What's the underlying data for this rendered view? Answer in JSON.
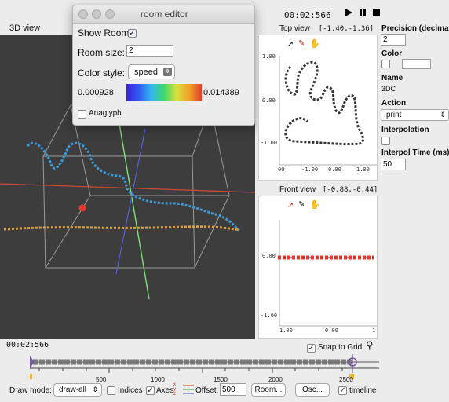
{
  "time_top": "00:02:566",
  "view3d": {
    "title": "3D view"
  },
  "top_view": {
    "title": "Top view",
    "coords": "[-1.40,-1.36]",
    "y_ticks": [
      "1.00",
      "0.00",
      "-1.00"
    ],
    "x_ticks": [
      "00",
      "-1.00",
      "0.00",
      "1.00"
    ]
  },
  "front_view": {
    "title": "Front view",
    "coords": "[-0.88,-0.44]",
    "y_ticks": [
      "0.00",
      "-1.00"
    ],
    "x_ticks": [
      "1.00",
      "0.00",
      "1"
    ]
  },
  "right_panel": {
    "precision_label": "Precision (decimals",
    "precision_value": "2",
    "color_label": "Color",
    "name_label": "Name",
    "name_value": "3DC",
    "action_label": "Action",
    "action_value": "print",
    "interpolation_label": "Interpolation",
    "interpol_time_label": "Interpol Time (ms)",
    "interpol_time_value": "50"
  },
  "room_editor": {
    "title": "room editor",
    "show_room_label": "Show Room:",
    "room_size_label": "Room size:",
    "room_size_value": "2",
    "color_style_label": "Color style:",
    "color_style_value": "speed",
    "scale_min": "0.000928",
    "scale_max": "0.014389",
    "anaglyph_label": "Anaglyph"
  },
  "timeline": {
    "time": "00:02:566",
    "snap_label": "Snap to Grid",
    "ticks": [
      "500",
      "1000",
      "1500",
      "2000",
      "2500"
    ]
  },
  "bottom_bar": {
    "draw_mode_label": "Draw mode:",
    "draw_mode_value": "draw-all",
    "indices_label": "Indices",
    "axes_label": "Axes",
    "axes_glyph": "x y z",
    "offset_label": "Offset:",
    "offset_value": "500",
    "room_button": "Room...",
    "osc_button": "Osc...",
    "timeline_label": "timeline"
  },
  "colors": {
    "accent_red": "#e8392a",
    "grid_gray": "#9a9a9a",
    "dark_bg": "#3d3d3d"
  }
}
